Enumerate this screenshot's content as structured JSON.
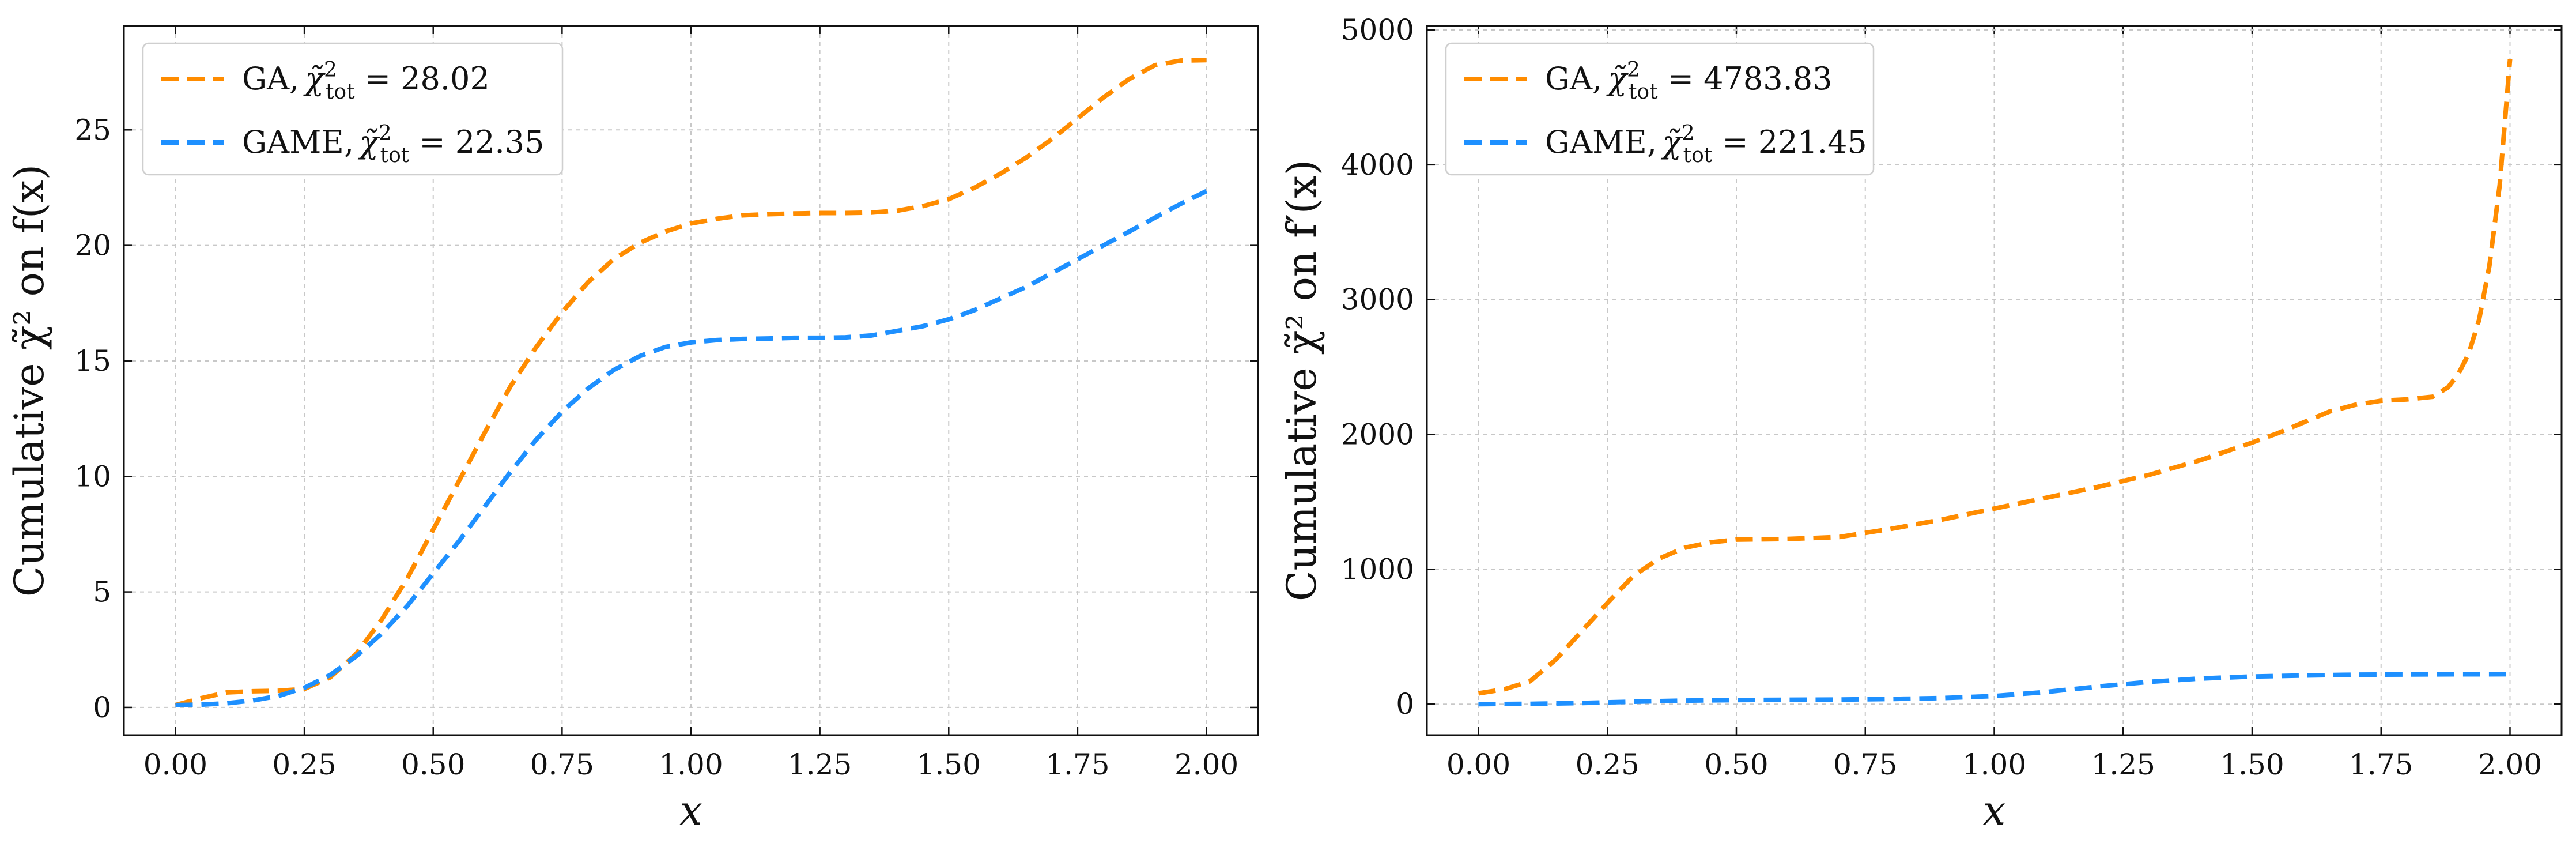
{
  "colors": {
    "ga": "#ff8c00",
    "game": "#1e90ff"
  },
  "chart_data": [
    {
      "type": "line",
      "xlabel": "x",
      "ylabel": "Cumulative χ̃² on f(x)",
      "xlim": [
        -0.1,
        2.1
      ],
      "ylim": [
        -1.2,
        29.5
      ],
      "xticks": [
        0.0,
        0.25,
        0.5,
        0.75,
        1.0,
        1.25,
        1.5,
        1.75,
        2.0
      ],
      "xtick_labels": [
        "0.00",
        "0.25",
        "0.50",
        "0.75",
        "1.00",
        "1.25",
        "1.50",
        "1.75",
        "2.00"
      ],
      "yticks": [
        0,
        5,
        10,
        15,
        20,
        25
      ],
      "ytick_labels": [
        "0",
        "5",
        "10",
        "15",
        "20",
        "25"
      ],
      "legend_location": "top-left",
      "series": [
        {
          "name": "GA",
          "legend_label": "GA,",
          "legend_value": "28.02",
          "color_key": "ga",
          "x": [
            0.0,
            0.05,
            0.1,
            0.15,
            0.2,
            0.25,
            0.3,
            0.35,
            0.4,
            0.45,
            0.5,
            0.55,
            0.6,
            0.65,
            0.7,
            0.75,
            0.8,
            0.85,
            0.9,
            0.95,
            1.0,
            1.05,
            1.1,
            1.15,
            1.2,
            1.25,
            1.3,
            1.35,
            1.4,
            1.45,
            1.5,
            1.55,
            1.6,
            1.65,
            1.7,
            1.75,
            1.8,
            1.85,
            1.9,
            1.95,
            2.0
          ],
          "values": [
            0.1,
            0.4,
            0.65,
            0.7,
            0.72,
            0.8,
            1.3,
            2.3,
            3.8,
            5.6,
            7.7,
            9.8,
            11.9,
            13.9,
            15.6,
            17.1,
            18.4,
            19.4,
            20.1,
            20.6,
            20.95,
            21.15,
            21.3,
            21.35,
            21.38,
            21.4,
            21.4,
            21.42,
            21.5,
            21.7,
            22.0,
            22.5,
            23.1,
            23.8,
            24.6,
            25.5,
            26.4,
            27.2,
            27.8,
            28.0,
            28.02
          ]
        },
        {
          "name": "GAME",
          "legend_label": "GAME,",
          "legend_value": "22.35",
          "color_key": "game",
          "x": [
            0.0,
            0.05,
            0.1,
            0.15,
            0.2,
            0.25,
            0.3,
            0.35,
            0.4,
            0.45,
            0.5,
            0.55,
            0.6,
            0.65,
            0.7,
            0.75,
            0.8,
            0.85,
            0.9,
            0.95,
            1.0,
            1.05,
            1.1,
            1.15,
            1.2,
            1.25,
            1.3,
            1.35,
            1.4,
            1.45,
            1.5,
            1.55,
            1.6,
            1.65,
            1.7,
            1.75,
            1.8,
            1.85,
            1.9,
            1.95,
            2.0
          ],
          "values": [
            0.1,
            0.12,
            0.18,
            0.3,
            0.5,
            0.85,
            1.4,
            2.2,
            3.2,
            4.4,
            5.8,
            7.2,
            8.7,
            10.2,
            11.6,
            12.8,
            13.8,
            14.6,
            15.2,
            15.6,
            15.8,
            15.9,
            15.95,
            15.97,
            16.0,
            16.0,
            16.02,
            16.1,
            16.3,
            16.5,
            16.8,
            17.2,
            17.7,
            18.2,
            18.8,
            19.4,
            20.0,
            20.6,
            21.2,
            21.8,
            22.35
          ]
        }
      ]
    },
    {
      "type": "line",
      "xlabel": "x",
      "ylabel": "Cumulative χ̃² on f′(x)",
      "xlim": [
        -0.1,
        2.1
      ],
      "ylim": [
        -230,
        5030
      ],
      "xticks": [
        0.0,
        0.25,
        0.5,
        0.75,
        1.0,
        1.25,
        1.5,
        1.75,
        2.0
      ],
      "xtick_labels": [
        "0.00",
        "0.25",
        "0.50",
        "0.75",
        "1.00",
        "1.25",
        "1.50",
        "1.75",
        "2.00"
      ],
      "yticks": [
        0,
        1000,
        2000,
        3000,
        4000,
        5000
      ],
      "ytick_labels": [
        "0",
        "1000",
        "2000",
        "3000",
        "4000",
        "5000"
      ],
      "legend_location": "top-left",
      "series": [
        {
          "name": "GA",
          "legend_label": "GA,",
          "legend_value": "4783.83",
          "color_key": "ga",
          "x": [
            0.0,
            0.05,
            0.1,
            0.15,
            0.2,
            0.25,
            0.3,
            0.35,
            0.4,
            0.45,
            0.5,
            0.6,
            0.7,
            0.8,
            0.9,
            1.0,
            1.1,
            1.2,
            1.3,
            1.4,
            1.5,
            1.55,
            1.6,
            1.65,
            1.7,
            1.75,
            1.8,
            1.85,
            1.88,
            1.9,
            1.92,
            1.94,
            1.96,
            1.98,
            2.0
          ],
          "values": [
            80,
            110,
            170,
            330,
            540,
            750,
            950,
            1080,
            1160,
            1200,
            1220,
            1225,
            1240,
            1300,
            1370,
            1450,
            1530,
            1610,
            1700,
            1810,
            1940,
            2010,
            2090,
            2170,
            2220,
            2250,
            2260,
            2280,
            2350,
            2450,
            2600,
            2850,
            3250,
            3850,
            4783.83
          ]
        },
        {
          "name": "GAME",
          "legend_label": "GAME,",
          "legend_value": "221.45",
          "color_key": "game",
          "x": [
            0.0,
            0.1,
            0.2,
            0.3,
            0.4,
            0.5,
            0.6,
            0.7,
            0.8,
            0.9,
            1.0,
            1.1,
            1.2,
            1.3,
            1.4,
            1.5,
            1.6,
            1.7,
            1.8,
            1.9,
            2.0
          ],
          "values": [
            0,
            2,
            8,
            18,
            26,
            30,
            32,
            34,
            38,
            45,
            60,
            90,
            130,
            165,
            190,
            205,
            212,
            218,
            220,
            221,
            221.45
          ]
        }
      ]
    }
  ]
}
